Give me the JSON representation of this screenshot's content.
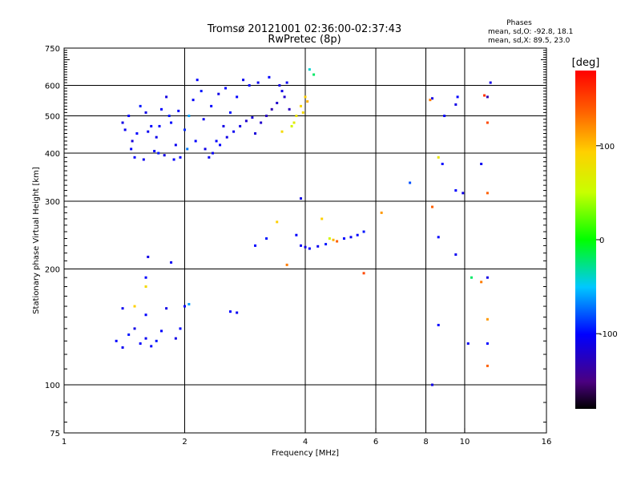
{
  "chart_data": {
    "type": "scatter",
    "title": "Tromsø 20121001 02:36:00-02:37:43",
    "subtitle": "RwPretec (8p)",
    "stats": {
      "heading": "Phases",
      "line_o": "mean, sd,O: -92.8, 18.1",
      "line_x": "mean, sd,X:  89.5, 23.0"
    },
    "xlabel": "Frequency [MHz]",
    "ylabel": "Stationary phase Virtual Height [km]",
    "x_scale": "log2",
    "y_scale": "log",
    "xlim": [
      1,
      16
    ],
    "ylim": [
      75,
      750
    ],
    "x_ticks": [
      1,
      2,
      4,
      6,
      8,
      10,
      16
    ],
    "x_tick_labels": [
      "1",
      "2",
      "4",
      "6",
      "8",
      "10",
      "16"
    ],
    "y_ticks": [
      75,
      100,
      200,
      300,
      400,
      500,
      600,
      750
    ],
    "y_tick_labels": [
      "75",
      "100",
      "200",
      "300",
      "400",
      "500",
      "600",
      "750"
    ],
    "grid_x": [
      2,
      4,
      6,
      8,
      10
    ],
    "grid_y": [
      100,
      200,
      300,
      400,
      500,
      600
    ],
    "colorbar": {
      "label": "[deg]",
      "range": [
        -180,
        180
      ],
      "ticks": [
        100,
        0,
        -100
      ],
      "tick_labels": [
        "100",
        "0",
        "-100"
      ]
    },
    "points": [
      {
        "x": 1.4,
        "y": 480,
        "phase": -110
      },
      {
        "x": 1.42,
        "y": 460,
        "phase": -105
      },
      {
        "x": 1.45,
        "y": 500,
        "phase": -100
      },
      {
        "x": 1.48,
        "y": 430,
        "phase": -115
      },
      {
        "x": 1.5,
        "y": 390,
        "phase": -100
      },
      {
        "x": 1.55,
        "y": 530,
        "phase": -95
      },
      {
        "x": 1.6,
        "y": 510,
        "phase": -110
      },
      {
        "x": 1.65,
        "y": 470,
        "phase": -100
      },
      {
        "x": 1.7,
        "y": 440,
        "phase": -108
      },
      {
        "x": 1.72,
        "y": 400,
        "phase": -95
      },
      {
        "x": 1.75,
        "y": 520,
        "phase": -100
      },
      {
        "x": 1.8,
        "y": 560,
        "phase": -112
      },
      {
        "x": 1.85,
        "y": 480,
        "phase": -98
      },
      {
        "x": 1.9,
        "y": 420,
        "phase": -105
      },
      {
        "x": 1.95,
        "y": 390,
        "phase": -100
      },
      {
        "x": 2.0,
        "y": 460,
        "phase": -90
      },
      {
        "x": 2.05,
        "y": 500,
        "phase": -60
      },
      {
        "x": 2.1,
        "y": 550,
        "phase": -102
      },
      {
        "x": 2.15,
        "y": 620,
        "phase": -100
      },
      {
        "x": 2.2,
        "y": 580,
        "phase": -95
      },
      {
        "x": 2.25,
        "y": 410,
        "phase": -110
      },
      {
        "x": 2.3,
        "y": 390,
        "phase": -105
      },
      {
        "x": 2.4,
        "y": 430,
        "phase": -100
      },
      {
        "x": 2.5,
        "y": 470,
        "phase": -110
      },
      {
        "x": 2.6,
        "y": 510,
        "phase": -95
      },
      {
        "x": 2.7,
        "y": 560,
        "phase": -100
      },
      {
        "x": 2.8,
        "y": 620,
        "phase": -105
      },
      {
        "x": 2.9,
        "y": 600,
        "phase": -100
      },
      {
        "x": 3.0,
        "y": 450,
        "phase": -115
      },
      {
        "x": 3.1,
        "y": 480,
        "phase": -120
      },
      {
        "x": 3.2,
        "y": 500,
        "phase": -125
      },
      {
        "x": 3.3,
        "y": 520,
        "phase": -130
      },
      {
        "x": 3.4,
        "y": 540,
        "phase": -120
      },
      {
        "x": 3.5,
        "y": 580,
        "phase": -110
      },
      {
        "x": 3.6,
        "y": 610,
        "phase": -105
      },
      {
        "x": 3.7,
        "y": 470,
        "phase": 60
      },
      {
        "x": 3.8,
        "y": 500,
        "phase": 80
      },
      {
        "x": 3.9,
        "y": 530,
        "phase": 95
      },
      {
        "x": 4.0,
        "y": 560,
        "phase": 100
      },
      {
        "x": 4.2,
        "y": 640,
        "phase": -20
      },
      {
        "x": 3.8,
        "y": 245,
        "phase": -100
      },
      {
        "x": 3.9,
        "y": 230,
        "phase": -105
      },
      {
        "x": 4.0,
        "y": 228,
        "phase": -110
      },
      {
        "x": 4.1,
        "y": 226,
        "phase": -100
      },
      {
        "x": 4.3,
        "y": 229,
        "phase": -105
      },
      {
        "x": 4.5,
        "y": 232,
        "phase": -95
      },
      {
        "x": 4.6,
        "y": 240,
        "phase": 60
      },
      {
        "x": 4.7,
        "y": 238,
        "phase": 110
      },
      {
        "x": 4.8,
        "y": 236,
        "phase": 140
      },
      {
        "x": 5.0,
        "y": 240,
        "phase": -100
      },
      {
        "x": 5.2,
        "y": 242,
        "phase": -105
      },
      {
        "x": 5.4,
        "y": 245,
        "phase": -100
      },
      {
        "x": 5.6,
        "y": 250,
        "phase": -95
      },
      {
        "x": 4.4,
        "y": 270,
        "phase": 100
      },
      {
        "x": 3.4,
        "y": 265,
        "phase": 100
      },
      {
        "x": 3.6,
        "y": 205,
        "phase": 130
      },
      {
        "x": 5.6,
        "y": 195,
        "phase": 150
      },
      {
        "x": 3.9,
        "y": 305,
        "phase": -110
      },
      {
        "x": 7.3,
        "y": 335,
        "phase": -80
      },
      {
        "x": 6.2,
        "y": 280,
        "phase": 120
      },
      {
        "x": 8.3,
        "y": 555,
        "phase": -110
      },
      {
        "x": 8.9,
        "y": 500,
        "phase": -100
      },
      {
        "x": 9.5,
        "y": 535,
        "phase": -110
      },
      {
        "x": 9.6,
        "y": 560,
        "phase": -100
      },
      {
        "x": 8.2,
        "y": 550,
        "phase": 130
      },
      {
        "x": 8.6,
        "y": 390,
        "phase": 80
      },
      {
        "x": 8.8,
        "y": 375,
        "phase": -100
      },
      {
        "x": 9.5,
        "y": 320,
        "phase": -100
      },
      {
        "x": 9.9,
        "y": 315,
        "phase": -110
      },
      {
        "x": 11.0,
        "y": 375,
        "phase": -105
      },
      {
        "x": 11.4,
        "y": 560,
        "phase": -130
      },
      {
        "x": 11.2,
        "y": 565,
        "phase": 160
      },
      {
        "x": 11.4,
        "y": 480,
        "phase": 150
      },
      {
        "x": 11.4,
        "y": 315,
        "phase": 140
      },
      {
        "x": 11.6,
        "y": 610,
        "phase": -110
      },
      {
        "x": 8.3,
        "y": 290,
        "phase": 140
      },
      {
        "x": 8.6,
        "y": 242,
        "phase": -100
      },
      {
        "x": 9.5,
        "y": 218,
        "phase": -105
      },
      {
        "x": 10.4,
        "y": 190,
        "phase": -20
      },
      {
        "x": 11.0,
        "y": 185,
        "phase": 130
      },
      {
        "x": 11.4,
        "y": 190,
        "phase": -110
      },
      {
        "x": 8.6,
        "y": 143,
        "phase": -100
      },
      {
        "x": 10.2,
        "y": 128,
        "phase": -105
      },
      {
        "x": 11.4,
        "y": 148,
        "phase": 120
      },
      {
        "x": 11.4,
        "y": 128,
        "phase": -100
      },
      {
        "x": 11.4,
        "y": 112,
        "phase": 140
      },
      {
        "x": 8.3,
        "y": 100,
        "phase": -110
      },
      {
        "x": 1.35,
        "y": 130,
        "phase": -100
      },
      {
        "x": 1.4,
        "y": 125,
        "phase": -105
      },
      {
        "x": 1.45,
        "y": 135,
        "phase": -95
      },
      {
        "x": 1.5,
        "y": 140,
        "phase": -110
      },
      {
        "x": 1.55,
        "y": 128,
        "phase": -100
      },
      {
        "x": 1.6,
        "y": 132,
        "phase": -105
      },
      {
        "x": 1.65,
        "y": 126,
        "phase": -100
      },
      {
        "x": 1.7,
        "y": 130,
        "phase": -95
      },
      {
        "x": 1.75,
        "y": 138,
        "phase": -100
      },
      {
        "x": 1.9,
        "y": 132,
        "phase": -110
      },
      {
        "x": 1.95,
        "y": 140,
        "phase": -100
      },
      {
        "x": 1.4,
        "y": 158,
        "phase": -105
      },
      {
        "x": 1.5,
        "y": 160,
        "phase": 100
      },
      {
        "x": 1.6,
        "y": 152,
        "phase": -100
      },
      {
        "x": 1.8,
        "y": 158,
        "phase": -110
      },
      {
        "x": 2.0,
        "y": 160,
        "phase": -100
      },
      {
        "x": 2.05,
        "y": 162,
        "phase": -60
      },
      {
        "x": 2.6,
        "y": 155,
        "phase": -100
      },
      {
        "x": 2.7,
        "y": 154,
        "phase": -105
      },
      {
        "x": 1.6,
        "y": 190,
        "phase": -100
      },
      {
        "x": 1.62,
        "y": 215,
        "phase": -110
      },
      {
        "x": 1.85,
        "y": 208,
        "phase": -105
      },
      {
        "x": 1.6,
        "y": 180,
        "phase": 90
      },
      {
        "x": 3.0,
        "y": 230,
        "phase": -100
      },
      {
        "x": 3.2,
        "y": 240,
        "phase": -95
      },
      {
        "x": 4.1,
        "y": 660,
        "phase": -40
      },
      {
        "x": 1.47,
        "y": 410,
        "phase": -100
      },
      {
        "x": 1.58,
        "y": 385,
        "phase": -105
      },
      {
        "x": 1.68,
        "y": 405,
        "phase": -100
      },
      {
        "x": 1.78,
        "y": 395,
        "phase": -110
      },
      {
        "x": 1.88,
        "y": 385,
        "phase": -100
      },
      {
        "x": 2.35,
        "y": 400,
        "phase": -105
      },
      {
        "x": 2.45,
        "y": 420,
        "phase": -100
      },
      {
        "x": 2.55,
        "y": 440,
        "phase": -110
      },
      {
        "x": 2.65,
        "y": 455,
        "phase": -105
      },
      {
        "x": 2.75,
        "y": 470,
        "phase": -110
      },
      {
        "x": 2.85,
        "y": 485,
        "phase": -120
      },
      {
        "x": 2.95,
        "y": 495,
        "phase": -115
      },
      {
        "x": 1.52,
        "y": 450,
        "phase": -100
      },
      {
        "x": 1.62,
        "y": 455,
        "phase": -105
      },
      {
        "x": 1.73,
        "y": 470,
        "phase": -100
      },
      {
        "x": 1.83,
        "y": 500,
        "phase": -95
      },
      {
        "x": 1.93,
        "y": 515,
        "phase": -100
      },
      {
        "x": 2.03,
        "y": 410,
        "phase": -70
      },
      {
        "x": 2.13,
        "y": 430,
        "phase": -100
      },
      {
        "x": 2.23,
        "y": 490,
        "phase": -105
      },
      {
        "x": 2.33,
        "y": 530,
        "phase": -100
      },
      {
        "x": 2.43,
        "y": 570,
        "phase": -110
      },
      {
        "x": 2.53,
        "y": 590,
        "phase": -100
      },
      {
        "x": 3.05,
        "y": 610,
        "phase": -105
      },
      {
        "x": 3.25,
        "y": 630,
        "phase": -100
      },
      {
        "x": 3.45,
        "y": 600,
        "phase": -110
      },
      {
        "x": 3.55,
        "y": 560,
        "phase": -120
      },
      {
        "x": 3.65,
        "y": 520,
        "phase": -125
      },
      {
        "x": 3.75,
        "y": 480,
        "phase": 70
      },
      {
        "x": 3.95,
        "y": 510,
        "phase": 90
      },
      {
        "x": 4.05,
        "y": 545,
        "phase": 110
      },
      {
        "x": 3.5,
        "y": 455,
        "phase": 90
      }
    ]
  }
}
